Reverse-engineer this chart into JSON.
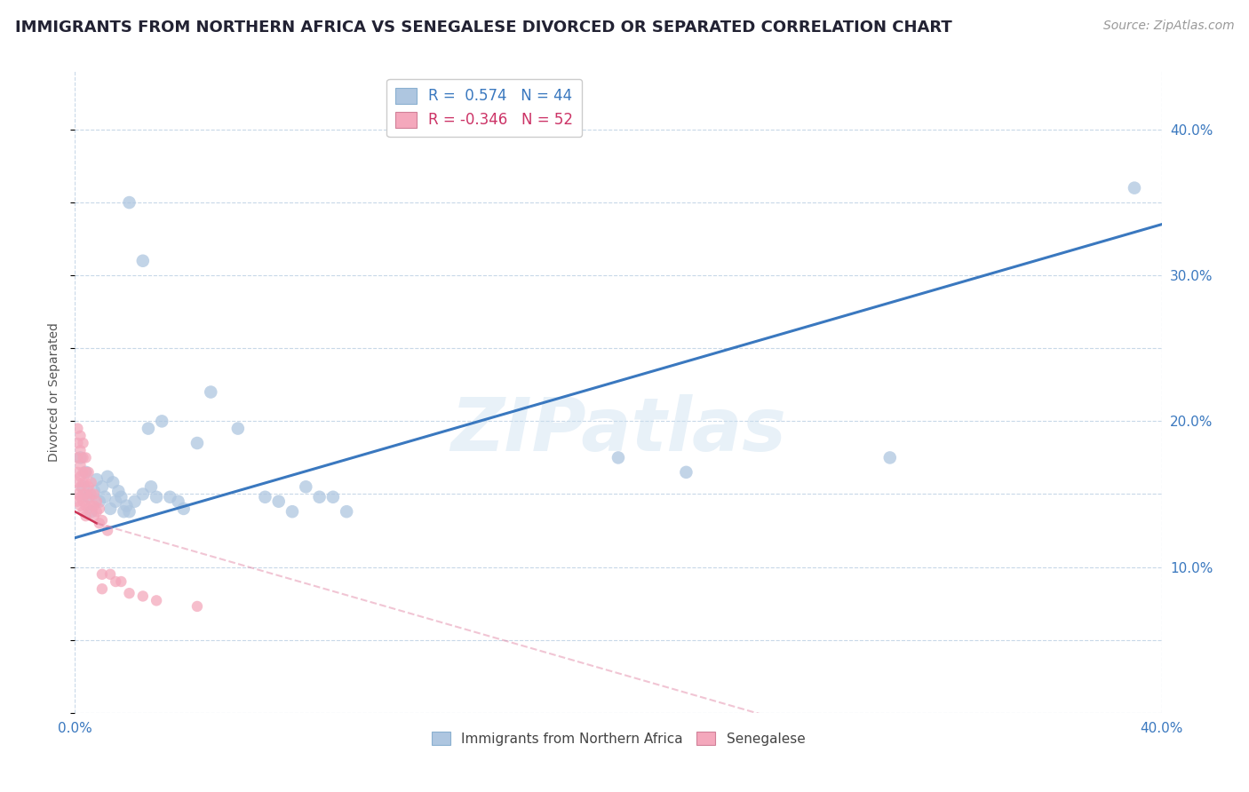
{
  "title": "IMMIGRANTS FROM NORTHERN AFRICA VS SENEGALESE DIVORCED OR SEPARATED CORRELATION CHART",
  "source": "Source: ZipAtlas.com",
  "ylabel": "Divorced or Separated",
  "xlim": [
    0.0,
    0.4
  ],
  "ylim": [
    0.0,
    0.44
  ],
  "yticks_right": [
    0.1,
    0.2,
    0.3,
    0.4
  ],
  "ytick_labels_right": [
    "10.0%",
    "20.0%",
    "30.0%",
    "40.0%"
  ],
  "xtick_vals": [
    0.0,
    0.4
  ],
  "xtick_labels": [
    "0.0%",
    "40.0%"
  ],
  "r_blue": 0.574,
  "n_blue": 44,
  "r_pink": -0.346,
  "n_pink": 52,
  "legend_labels": [
    "Immigrants from Northern Africa",
    "Senegalese"
  ],
  "blue_color": "#aec6e0",
  "pink_color": "#f4a8bc",
  "blue_line_color": "#3a78bf",
  "pink_line_color": "#e080a0",
  "watermark": "ZIPatlas",
  "blue_scatter": [
    [
      0.002,
      0.175
    ],
    [
      0.003,
      0.155
    ],
    [
      0.004,
      0.165
    ],
    [
      0.005,
      0.148
    ],
    [
      0.006,
      0.138
    ],
    [
      0.007,
      0.152
    ],
    [
      0.008,
      0.16
    ],
    [
      0.009,
      0.145
    ],
    [
      0.01,
      0.155
    ],
    [
      0.011,
      0.148
    ],
    [
      0.012,
      0.162
    ],
    [
      0.013,
      0.14
    ],
    [
      0.014,
      0.158
    ],
    [
      0.015,
      0.145
    ],
    [
      0.016,
      0.152
    ],
    [
      0.017,
      0.148
    ],
    [
      0.018,
      0.138
    ],
    [
      0.019,
      0.142
    ],
    [
      0.02,
      0.138
    ],
    [
      0.022,
      0.145
    ],
    [
      0.025,
      0.15
    ],
    [
      0.027,
      0.195
    ],
    [
      0.028,
      0.155
    ],
    [
      0.03,
      0.148
    ],
    [
      0.032,
      0.2
    ],
    [
      0.035,
      0.148
    ],
    [
      0.038,
      0.145
    ],
    [
      0.04,
      0.14
    ],
    [
      0.045,
      0.185
    ],
    [
      0.05,
      0.22
    ],
    [
      0.06,
      0.195
    ],
    [
      0.07,
      0.148
    ],
    [
      0.075,
      0.145
    ],
    [
      0.08,
      0.138
    ],
    [
      0.085,
      0.155
    ],
    [
      0.09,
      0.148
    ],
    [
      0.095,
      0.148
    ],
    [
      0.02,
      0.35
    ],
    [
      0.025,
      0.31
    ],
    [
      0.1,
      0.138
    ],
    [
      0.2,
      0.175
    ],
    [
      0.225,
      0.165
    ],
    [
      0.3,
      0.175
    ],
    [
      0.39,
      0.36
    ]
  ],
  "pink_scatter": [
    [
      0.001,
      0.195
    ],
    [
      0.001,
      0.185
    ],
    [
      0.001,
      0.175
    ],
    [
      0.001,
      0.165
    ],
    [
      0.001,
      0.158
    ],
    [
      0.001,
      0.15
    ],
    [
      0.001,
      0.145
    ],
    [
      0.002,
      0.19
    ],
    [
      0.002,
      0.18
    ],
    [
      0.002,
      0.17
    ],
    [
      0.002,
      0.162
    ],
    [
      0.002,
      0.155
    ],
    [
      0.002,
      0.148
    ],
    [
      0.002,
      0.142
    ],
    [
      0.003,
      0.185
    ],
    [
      0.003,
      0.175
    ],
    [
      0.003,
      0.165
    ],
    [
      0.003,
      0.158
    ],
    [
      0.003,
      0.15
    ],
    [
      0.003,
      0.145
    ],
    [
      0.003,
      0.138
    ],
    [
      0.004,
      0.175
    ],
    [
      0.004,
      0.165
    ],
    [
      0.004,
      0.158
    ],
    [
      0.004,
      0.15
    ],
    [
      0.004,
      0.142
    ],
    [
      0.004,
      0.135
    ],
    [
      0.005,
      0.165
    ],
    [
      0.005,
      0.155
    ],
    [
      0.005,
      0.148
    ],
    [
      0.005,
      0.14
    ],
    [
      0.006,
      0.158
    ],
    [
      0.006,
      0.15
    ],
    [
      0.006,
      0.142
    ],
    [
      0.007,
      0.15
    ],
    [
      0.007,
      0.142
    ],
    [
      0.007,
      0.135
    ],
    [
      0.008,
      0.145
    ],
    [
      0.008,
      0.138
    ],
    [
      0.009,
      0.14
    ],
    [
      0.009,
      0.13
    ],
    [
      0.01,
      0.132
    ],
    [
      0.01,
      0.095
    ],
    [
      0.01,
      0.085
    ],
    [
      0.012,
      0.125
    ],
    [
      0.013,
      0.095
    ],
    [
      0.015,
      0.09
    ],
    [
      0.017,
      0.09
    ],
    [
      0.02,
      0.082
    ],
    [
      0.025,
      0.08
    ],
    [
      0.03,
      0.077
    ],
    [
      0.045,
      0.073
    ]
  ],
  "grid_color": "#c8d8e8",
  "background_color": "#ffffff",
  "title_fontsize": 13,
  "axis_label_fontsize": 10,
  "tick_fontsize": 11,
  "legend_fontsize": 11
}
